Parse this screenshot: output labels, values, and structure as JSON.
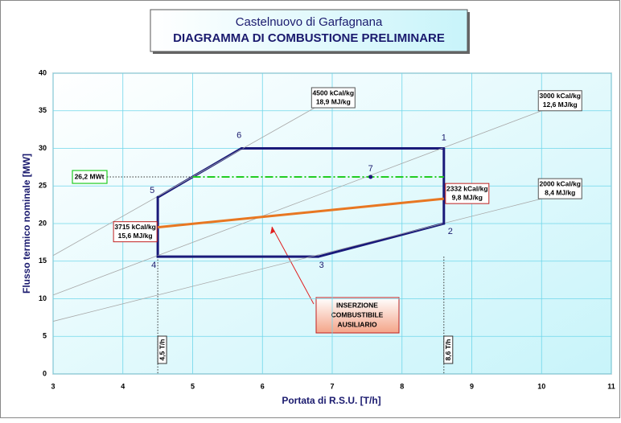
{
  "chart_data": {
    "type": "line",
    "title": "Castelnuovo di Garfagnana",
    "subtitle": "DIAGRAMMA DI COMBUSTIONE PRELIMINARE",
    "x_label": "Portata di R.S.U. [T/h]",
    "y_label": "Flusso termico nominale [MW]",
    "xlim": [
      3,
      11
    ],
    "ylim": [
      0,
      40
    ],
    "xticks": [
      3,
      4,
      5,
      6,
      7,
      8,
      9,
      10,
      11
    ],
    "yticks": [
      0,
      5,
      10,
      15,
      20,
      25,
      30,
      35,
      40
    ],
    "grid": true,
    "series": [
      {
        "color": "#1a1a7a",
        "x": [
          8.6,
          8.6,
          6.8,
          4.5,
          4.5,
          5.7,
          8.6
        ],
        "values": [
          30,
          20,
          15.6,
          15.6,
          23.5,
          30,
          30
        ]
      },
      {
        "color": "#a8a8a8",
        "x": [
          3,
          6.75
        ],
        "values": [
          15.75,
          35.4
        ],
        "end_labels": [
          "4500 kCal/kg",
          "18,9 MJ/kg"
        ]
      },
      {
        "color": "#a8a8a8",
        "x": [
          3,
          10
        ],
        "values": [
          10.5,
          35
        ],
        "end_labels": [
          "3000 kCal/kg",
          "12,6 MJ/kg"
        ]
      },
      {
        "color": "#a8a8a8",
        "x": [
          3,
          10
        ],
        "values": [
          7,
          23.3
        ],
        "end_labels": [
          "2000 kCal/kg",
          "8,4 MJ/kg"
        ]
      },
      {
        "color": "#e87722",
        "x": [
          4.5,
          8.6
        ],
        "values": [
          19.5,
          23.3
        ],
        "start_labels": [
          "3715 kCal/kg",
          "15,6 MJ/kg"
        ],
        "end_labels": [
          "2332 kCal/kg",
          "9,8 MJ/kg"
        ]
      },
      {
        "color": "#22cc22",
        "dash": true,
        "x": [
          5,
          8.6
        ],
        "values": [
          26.2,
          26.2
        ]
      }
    ],
    "points": [
      {
        "label": "1",
        "x": 8.6,
        "y": 30
      },
      {
        "label": "2",
        "x": 8.6,
        "y": 20
      },
      {
        "label": "3",
        "x": 6.8,
        "y": 15.6
      },
      {
        "label": "4",
        "x": 4.5,
        "y": 15.6
      },
      {
        "label": "5",
        "x": 4.5,
        "y": 23.5
      },
      {
        "label": "6",
        "x": 5.7,
        "y": 30
      },
      {
        "label": "7",
        "x": 7.55,
        "y": 26.2
      }
    ],
    "y_markers": [
      {
        "label": "26,2 MWt",
        "y": 26.2
      }
    ],
    "x_markers": [
      {
        "label": "4,5 T/h",
        "x": 4.5
      },
      {
        "label": "8,6 T/h",
        "x": 8.6
      }
    ],
    "callout": [
      "INSERZIONE",
      "COMBUSTIBILE",
      "AUSILIARIO"
    ]
  }
}
